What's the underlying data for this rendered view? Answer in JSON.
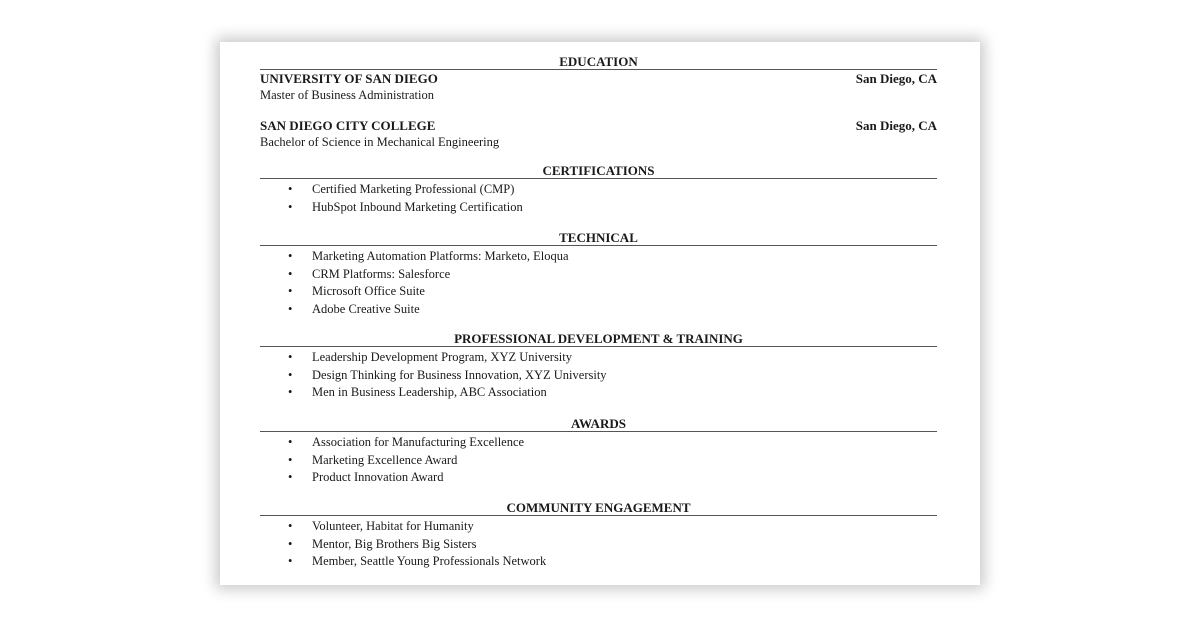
{
  "education": {
    "heading": "EDUCATION",
    "entries": [
      {
        "school": "UNIVERSITY OF SAN DIEGO",
        "location": "San Diego, CA",
        "degree": "Master of Business Administration"
      },
      {
        "school": "SAN DIEGO CITY COLLEGE",
        "location": "San Diego, CA",
        "degree": "Bachelor of Science in Mechanical Engineering"
      }
    ]
  },
  "certifications": {
    "heading": "CERTIFICATIONS",
    "items": [
      "Certified Marketing Professional (CMP)",
      "HubSpot Inbound Marketing Certification"
    ]
  },
  "technical": {
    "heading": "TECHNICAL",
    "items": [
      "Marketing Automation Platforms: Marketo, Eloqua",
      "CRM Platforms: Salesforce",
      "Microsoft Office Suite",
      "Adobe Creative Suite"
    ]
  },
  "development": {
    "heading": "PROFESSIONAL DEVELOPMENT & TRAINING",
    "items": [
      "Leadership Development Program, XYZ University",
      "Design Thinking for Business Innovation, XYZ University",
      "Men in Business Leadership, ABC Association"
    ]
  },
  "awards": {
    "heading": "AWARDS",
    "items": [
      "Association for Manufacturing Excellence",
      "Marketing Excellence Award",
      "Product Innovation Award"
    ]
  },
  "community": {
    "heading": "COMMUNITY ENGAGEMENT",
    "items": [
      "Volunteer, Habitat for Humanity",
      "Mentor, Big Brothers Big Sisters",
      "Member, Seattle Young Professionals Network"
    ]
  },
  "bullet": "•"
}
